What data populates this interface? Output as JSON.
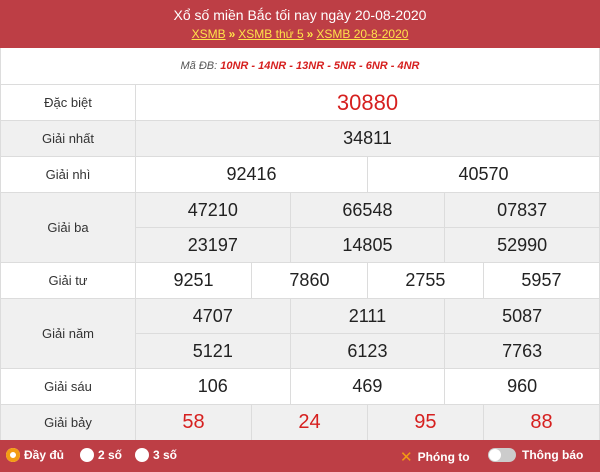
{
  "header": {
    "title": "Xổ số miền Bắc tối nay ngày 20-08-2020",
    "breadcrumbs": [
      "XSMB",
      "XSMB thứ 5",
      "XSMB 20-8-2020"
    ],
    "separator": "»"
  },
  "ma_db": {
    "label": "Mã ĐB:",
    "codes": "10NR - 14NR - 13NR - 5NR - 6NR - 4NR"
  },
  "results": {
    "dac_biet": {
      "label": "Đặc biệt",
      "values": [
        "30880"
      ]
    },
    "giai_nhat": {
      "label": "Giải nhất",
      "values": [
        "34811"
      ]
    },
    "giai_nhi": {
      "label": "Giải nhì",
      "values": [
        "92416",
        "40570"
      ]
    },
    "giai_ba": {
      "label": "Giải ba",
      "values": [
        "47210",
        "66548",
        "07837",
        "23197",
        "14805",
        "52990"
      ]
    },
    "giai_tu": {
      "label": "Giải tư",
      "values": [
        "9251",
        "7860",
        "2755",
        "5957"
      ]
    },
    "giai_nam": {
      "label": "Giải năm",
      "values": [
        "4707",
        "2111",
        "5087",
        "5121",
        "6123",
        "7763"
      ]
    },
    "giai_sau": {
      "label": "Giải sáu",
      "values": [
        "106",
        "469",
        "960"
      ]
    },
    "giai_bay": {
      "label": "Giải bảy",
      "values": [
        "58",
        "24",
        "95",
        "88"
      ]
    }
  },
  "footer": {
    "options": [
      "Đầy đủ",
      "2 số",
      "3 số"
    ],
    "selected": "Đầy đủ",
    "zoom_label": "Phóng to",
    "notify_label": "Thông báo"
  },
  "colors": {
    "brand": "#bd3e45",
    "accent": "#ffe24a",
    "highlight": "#d6201f",
    "radio": "#f39c12"
  }
}
